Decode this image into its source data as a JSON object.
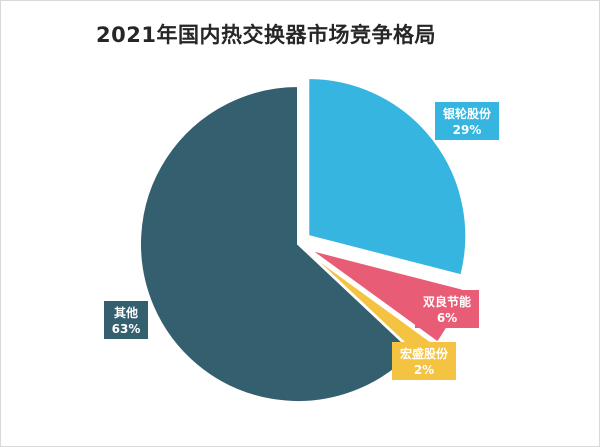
{
  "chart_data": {
    "type": "pie",
    "title": "2021年国内热交换器市场竞争格局",
    "slices": [
      {
        "name": "银轮股份",
        "value": 29,
        "label": "29%",
        "color": "#35b5e0",
        "exploded": true
      },
      {
        "name": "双良节能",
        "value": 6,
        "label": "6%",
        "color": "#e95c75",
        "exploded": true
      },
      {
        "name": "宏盛股份",
        "value": 2,
        "label": "2%",
        "color": "#f5c342",
        "exploded": true
      },
      {
        "name": "其他",
        "value": 63,
        "label": "63%",
        "color": "#345f6f",
        "exploded": false
      }
    ],
    "data_labels": "callout boxes outside slices",
    "legend": "none"
  }
}
